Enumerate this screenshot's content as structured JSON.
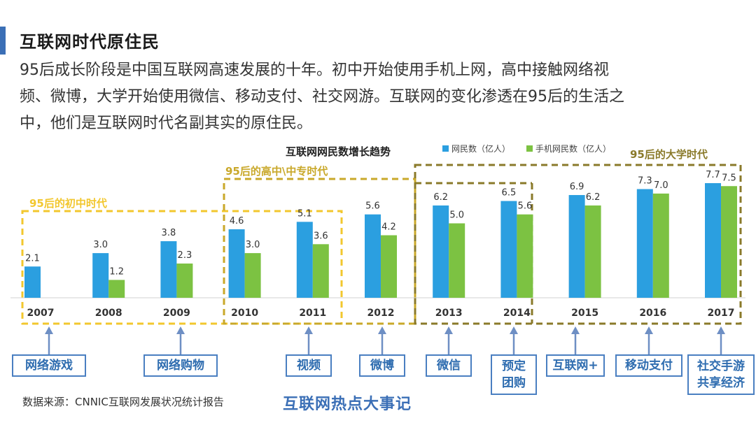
{
  "header": {
    "title": "互联网时代原住民",
    "intro_lines": [
      "95后成长阶段是中国互联网高速发展的十年。初中开始使用手机上网，高中接触网络视",
      "频、微博，大学开始使用微信、移动支付、社交网游。互联网的变化渗透在95后的生活之",
      "中，他们是互联网时代名副其实的原住民。"
    ]
  },
  "chart_data": {
    "type": "bar",
    "title": "互联网网民数增长趋势",
    "categories": [
      "2007",
      "2008",
      "2009",
      "2010",
      "2011",
      "2012",
      "2013",
      "2014",
      "2015",
      "2016",
      "2017"
    ],
    "series": [
      {
        "name": "网民数（亿人）",
        "color": "#2b9fe0",
        "values": [
          2.1,
          3.0,
          3.8,
          4.6,
          5.1,
          5.6,
          6.2,
          6.5,
          6.9,
          7.3,
          7.7
        ]
      },
      {
        "name": "手机网民数（亿人）",
        "color": "#7cc242",
        "values": [
          null,
          1.2,
          2.3,
          3.0,
          3.6,
          4.2,
          5.0,
          5.6,
          6.2,
          7.0,
          7.5
        ]
      }
    ],
    "value_labels": [
      [
        "2.1",
        "3.0",
        "3.8",
        "4.6",
        "5.1",
        "5.6",
        "6.2",
        "6.5",
        "6.9",
        "7.3",
        "7.7"
      ],
      [
        "",
        "1.2",
        "2.3",
        "3.0",
        "3.6",
        "4.2",
        "5.0",
        "5.6",
        "6.2",
        "7.0",
        "7.5"
      ]
    ],
    "legend": "top",
    "ylim": [
      0,
      8.5
    ],
    "grid": false,
    "annotations": [
      {
        "label": "95后的初中时代",
        "from": "2007",
        "to": "2009",
        "color": "#f2c72e"
      },
      {
        "label": "95后的高中\\中专时代",
        "from": "2010",
        "to": "2012",
        "color": "#c9a82a"
      },
      {
        "label": "95后的大学时代",
        "from": "2013",
        "to": "2017",
        "color": "#8a7a2a"
      }
    ]
  },
  "events": [
    {
      "label": "网络游戏",
      "year": "2007"
    },
    {
      "label": "网络购物",
      "year": "2009"
    },
    {
      "label": "视频",
      "year": "2011"
    },
    {
      "label": "微博",
      "year": "2012"
    },
    {
      "label": "微信",
      "year": "2013"
    },
    {
      "label": "预定\n团购",
      "year": "2014"
    },
    {
      "label": "互联网+",
      "year": "2015"
    },
    {
      "label": "移动支付",
      "year": "2016"
    },
    {
      "label": "社交手游\n共享经济",
      "year": "2017"
    }
  ],
  "footer": {
    "source": "数据来源：CNNIC互联网发展状况统计报告",
    "title": "互联网热点大事记"
  }
}
